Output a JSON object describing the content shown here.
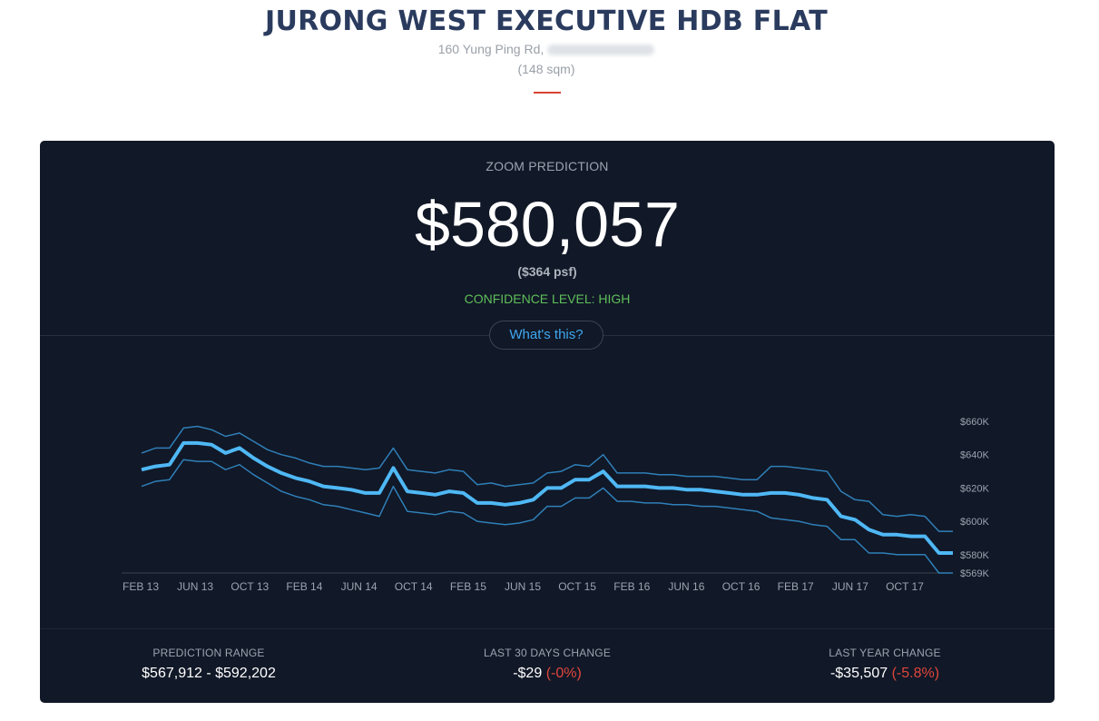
{
  "header": {
    "title": "JURONG WEST EXECUTIVE HDB FLAT",
    "address": "160 Yung Ping Rd,",
    "size": "(148 sqm)"
  },
  "prediction": {
    "label": "ZOOM PREDICTION",
    "price": "$580,057",
    "psf": "($364 psf)",
    "confidence": "CONFIDENCE LEVEL: HIGH",
    "whats_this": "What's this?"
  },
  "stats": {
    "range_label": "PREDICTION RANGE",
    "range_value": "$567,912 - $592,202",
    "month_label": "LAST 30 DAYS CHANGE",
    "month_value": "-$29",
    "month_pct": "(-0%)",
    "year_label": "LAST YEAR CHANGE",
    "year_value": "-$35,507",
    "year_pct": "(-5.8%)"
  },
  "colors": {
    "accent_red": "#d9432f",
    "line_main": "#4fb8f5",
    "line_band": "#2f7fb8",
    "confidence": "#5fbf5a",
    "negative": "#e0463c"
  },
  "chart_data": {
    "type": "line",
    "x_tick_labels": [
      "FEB 13",
      "JUN 13",
      "OCT 13",
      "FEB 14",
      "JUN 14",
      "OCT 14",
      "FEB 15",
      "JUN 15",
      "OCT 15",
      "FEB 16",
      "JUN 16",
      "OCT 16",
      "FEB 17",
      "JUN 17",
      "OCT 17"
    ],
    "y_tick_labels": [
      "$660K",
      "$640K",
      "$620K",
      "$600K",
      "$580K",
      "$569K"
    ],
    "y_ticks": [
      660,
      640,
      620,
      600,
      580,
      569
    ],
    "ylim": [
      569,
      672
    ],
    "y_unit": "thousand SGD",
    "series": [
      {
        "role": "prediction",
        "values": [
          631,
          633,
          634,
          647,
          647,
          646,
          641,
          644,
          638,
          633,
          629,
          626,
          624,
          621,
          620,
          619,
          617,
          617,
          632,
          618,
          617,
          616,
          618,
          617,
          611,
          611,
          610,
          611,
          613,
          620,
          620,
          625,
          625,
          630,
          621,
          621,
          621,
          620,
          620,
          619,
          619,
          618,
          617,
          616,
          616,
          617,
          617,
          616,
          614,
          613,
          603,
          601,
          595,
          592,
          592,
          591,
          591,
          581,
          581
        ]
      },
      {
        "role": "upper",
        "values": [
          641,
          644,
          644,
          656,
          657,
          655,
          651,
          653,
          648,
          643,
          640,
          638,
          635,
          633,
          633,
          632,
          631,
          632,
          644,
          631,
          630,
          629,
          631,
          630,
          622,
          623,
          621,
          622,
          623,
          629,
          630,
          634,
          633,
          640,
          629,
          629,
          629,
          628,
          628,
          627,
          627,
          627,
          626,
          625,
          625,
          633,
          633,
          632,
          631,
          630,
          618,
          613,
          612,
          604,
          603,
          604,
          603,
          594,
          594
        ]
      },
      {
        "role": "lower",
        "values": [
          621,
          624,
          625,
          637,
          636,
          636,
          631,
          634,
          628,
          623,
          618,
          615,
          613,
          610,
          609,
          607,
          605,
          603,
          621,
          606,
          605,
          604,
          606,
          605,
          600,
          599,
          598,
          599,
          601,
          609,
          609,
          614,
          614,
          620,
          612,
          612,
          611,
          611,
          610,
          610,
          609,
          609,
          608,
          607,
          606,
          602,
          601,
          600,
          598,
          597,
          589,
          589,
          581,
          581,
          580,
          580,
          580,
          569,
          569
        ]
      }
    ]
  }
}
